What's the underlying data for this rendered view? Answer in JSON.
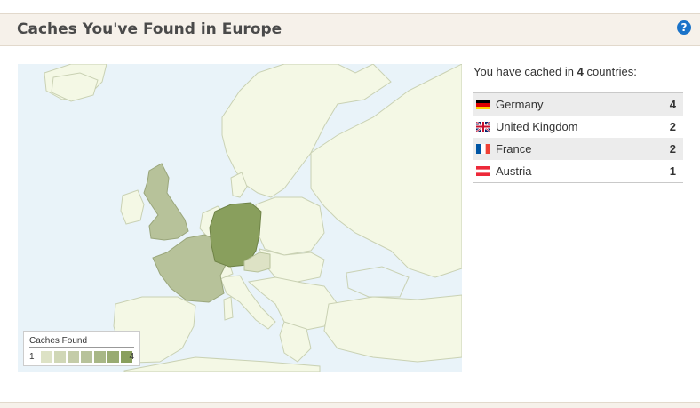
{
  "panel": {
    "title": "Caches You've Found in Europe",
    "help_icon": "question-circle-icon"
  },
  "summary": {
    "prefix": "You have cached in ",
    "count": "4",
    "suffix": " countries:"
  },
  "countries": [
    {
      "name": "Germany",
      "count": "4",
      "flag": "germany-flag-icon"
    },
    {
      "name": "United Kingdom",
      "count": "2",
      "flag": "uk-flag-icon"
    },
    {
      "name": "France",
      "count": "2",
      "flag": "france-flag-icon"
    },
    {
      "name": "Austria",
      "count": "1",
      "flag": "austria-flag-icon"
    }
  ],
  "legend": {
    "title": "Caches Found",
    "min": "1",
    "max": "4"
  },
  "colors": {
    "header_bg": "#f6f1ea",
    "sea": "#e9f3f9",
    "land": "#f4f8e5",
    "border": "#c9d1b3",
    "level_1": "#dde2c5",
    "level_2": "#b7c29a",
    "level_4": "#899f5d",
    "help": "#1a73c9"
  }
}
